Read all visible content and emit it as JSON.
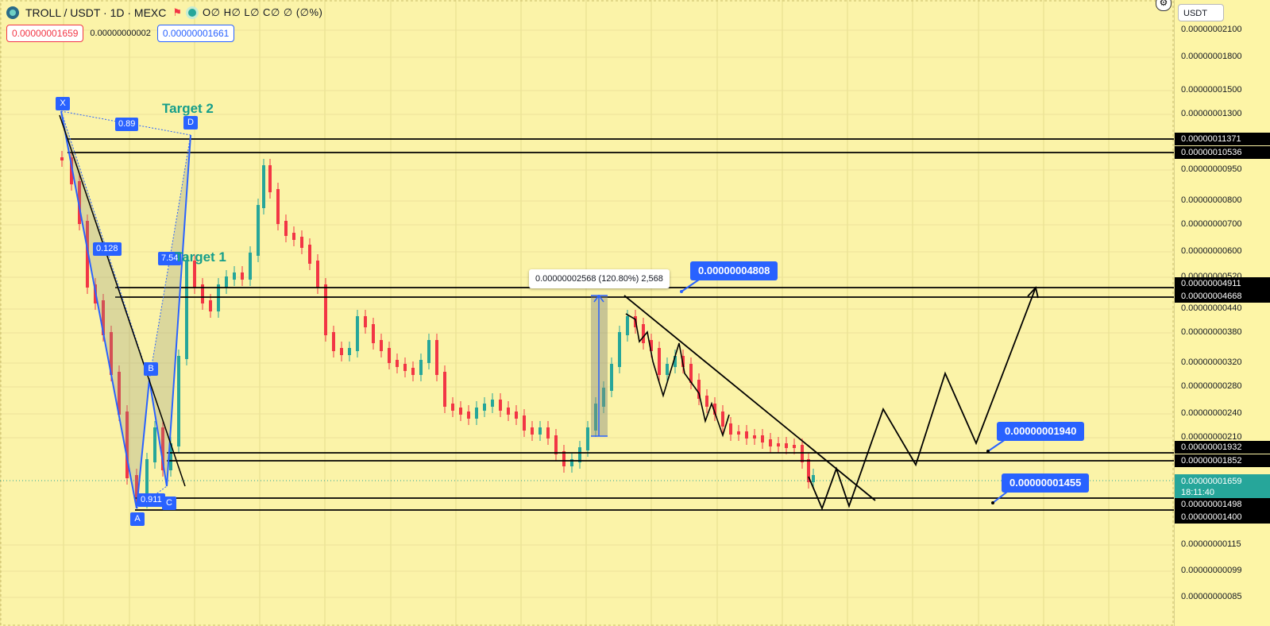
{
  "symbol_bar": {
    "title": "TROLL / USDT · 1D · MEXC",
    "ohlc": "O∅ H∅ L∅ C∅ ∅ (∅%)",
    "logo_icon": "exchange-logo-icon",
    "flag_icon": "flag-icon",
    "status_icon": "market-open-dot-icon"
  },
  "trade": {
    "sell_price": "0.00000001659",
    "spread": "0.00000000002",
    "buy_price": "0.00000001661"
  },
  "price_axis": {
    "currency": "USDT",
    "ticks": [
      "0.00000002100",
      "0.00000001800",
      "0.00000001500",
      "0.00000001300",
      "0.00000000950",
      "0.00000000800",
      "0.00000000700",
      "0.00000000600",
      "0.00000000520",
      "0.00000000440",
      "0.00000000380",
      "0.00000000320",
      "0.00000000280",
      "0.00000000240",
      "0.00000000210",
      "0.00000000115",
      "0.00000000099",
      "0.00000000085"
    ],
    "level_tags": [
      "0.00000011371",
      "0.00000010536",
      "0.00000004911",
      "0.00000004668",
      "0.00000001932",
      "0.00000001852",
      "0.00000001498",
      "0.00000001400"
    ],
    "current_price": "0.00000001659",
    "countdown": "18:11:40",
    "colors": {
      "level_tag": "#000000",
      "current": "#26a69a"
    }
  },
  "drawings": {
    "callouts": [
      "0.00000004808",
      "0.00000001940",
      "0.00000001455"
    ],
    "measure": "0.00000002568 (120.80%) 2,568",
    "pattern_points": [
      "X",
      "A",
      "B",
      "C",
      "D"
    ],
    "ratios": [
      "0.89",
      "0.128",
      "7.54",
      "0.911"
    ],
    "targets": [
      "Target 2",
      "Target 1"
    ]
  },
  "colors": {
    "background": "#fbf3a8",
    "up": "#26a69a",
    "down": "#f23645",
    "drawing": "#2962ff",
    "lines": "#000000"
  }
}
